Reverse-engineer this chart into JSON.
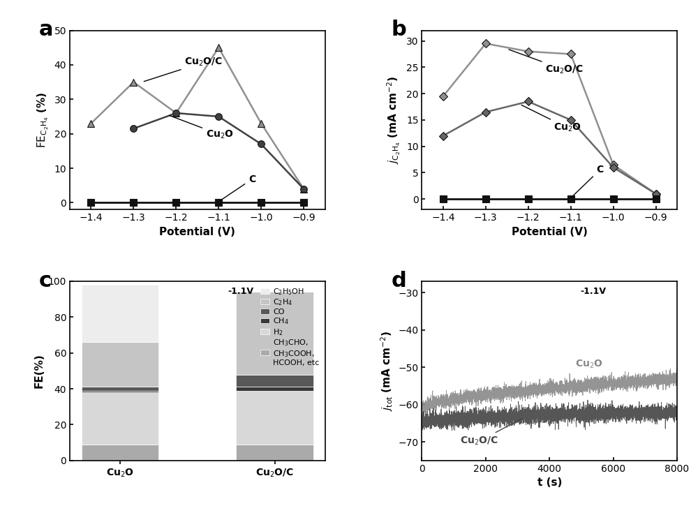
{
  "panel_a": {
    "xlabel": "Potential (V)",
    "ylim": [
      -2,
      50
    ],
    "yticks": [
      0,
      10,
      20,
      30,
      40,
      50
    ],
    "xlim": [
      -1.45,
      -0.85
    ],
    "xticks": [
      -0.9,
      -1.0,
      -1.1,
      -1.2,
      -1.3,
      -1.4
    ],
    "cu2o_c_x": [
      -0.9,
      -1.0,
      -1.1,
      -1.2,
      -1.3,
      -1.4
    ],
    "cu2o_c_y": [
      4,
      23,
      45,
      26,
      35,
      23
    ],
    "cu2o_x": [
      -0.9,
      -1.0,
      -1.1,
      -1.2,
      -1.3
    ],
    "cu2o_y": [
      4,
      17,
      25,
      26,
      21.5
    ],
    "c_x": [
      -0.9,
      -1.0,
      -1.1,
      -1.2,
      -1.3,
      -1.4
    ],
    "c_y": [
      0,
      0,
      0,
      0,
      0,
      0
    ]
  },
  "panel_b": {
    "xlabel": "Potential (V)",
    "ylim": [
      -2,
      32
    ],
    "yticks": [
      0,
      5,
      10,
      15,
      20,
      25,
      30
    ],
    "xlim": [
      -1.45,
      -0.85
    ],
    "xticks": [
      -0.9,
      -1.0,
      -1.1,
      -1.2,
      -1.3,
      -1.4
    ],
    "cu2o_c_x": [
      -0.9,
      -1.0,
      -1.1,
      -1.2,
      -1.3,
      -1.4
    ],
    "cu2o_c_y": [
      1,
      6.5,
      27.5,
      28,
      29.5,
      19.5
    ],
    "cu2o_x": [
      -0.9,
      -1.0,
      -1.1,
      -1.2,
      -1.3,
      -1.4
    ],
    "cu2o_y": [
      1,
      6,
      15,
      18.5,
      16.5,
      12
    ],
    "c_x": [
      -0.9,
      -1.0,
      -1.1,
      -1.2,
      -1.3,
      -1.4
    ],
    "c_y": [
      0,
      0,
      0,
      0,
      0,
      0
    ]
  },
  "panel_c": {
    "ylabel": "FE(%)",
    "ylim": [
      0,
      100
    ],
    "yticks": [
      0,
      20,
      40,
      60,
      80,
      100
    ],
    "annotation": "-1.1V",
    "categories": [
      "Cu$_2$O",
      "Cu$_2$O/C"
    ],
    "cu2o_values": [
      9,
      29,
      1,
      2,
      25,
      32
    ],
    "cu2o_c_values": [
      9,
      30,
      2,
      7,
      46,
      0
    ],
    "bar_colors": [
      "#aaaaaa",
      "#d8d8d8",
      "#383838",
      "#585858",
      "#c5c5c5",
      "#ededed"
    ],
    "legend_labels": [
      "CH$_3$CHO,\nCH$_3$COOH,\nHCOOH, etc",
      "H$_2$",
      "CH$_4$",
      "CO",
      "C$_2$H$_4$",
      "C$_2$H$_5$OH"
    ]
  },
  "panel_d": {
    "xlabel": "t (s)",
    "ylabel": "$j_\\mathrm{tot}$ (mA cm$^{-2}$)",
    "ylim": [
      -75,
      -27
    ],
    "yticks": [
      -70,
      -60,
      -50,
      -40,
      -30
    ],
    "xlim": [
      0,
      8000
    ],
    "xticks": [
      0,
      2000,
      4000,
      6000,
      8000
    ],
    "annotation": "-1.1V",
    "cu2o_color": "#888888",
    "cu2o_c_color": "#444444"
  }
}
